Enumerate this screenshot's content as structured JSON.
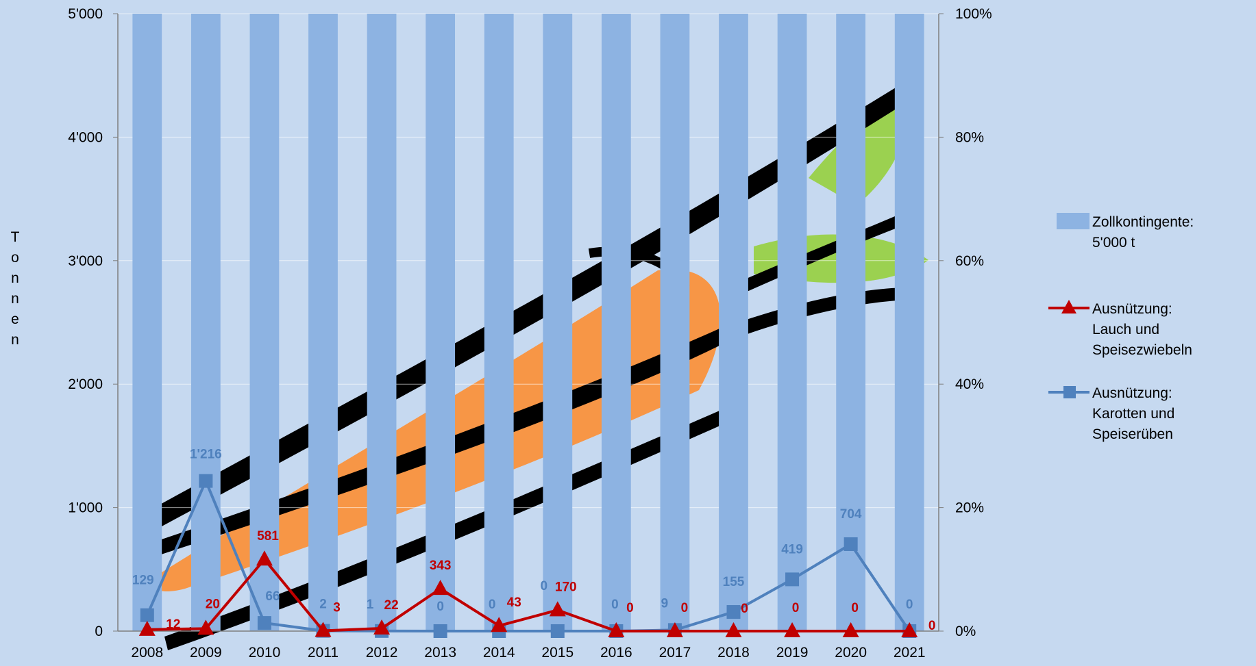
{
  "chart_data": {
    "type": "bar",
    "categories": [
      "2008",
      "2009",
      "2010",
      "2011",
      "2012",
      "2013",
      "2014",
      "2015",
      "2016",
      "2017",
      "2018",
      "2019",
      "2020",
      "2021"
    ],
    "ylabel": "Tonnen",
    "ylim": [
      0,
      5000
    ],
    "y_ticks": [
      "0",
      "1'000",
      "2'000",
      "3'000",
      "4'000",
      "5'000"
    ],
    "y2lim": [
      0,
      100
    ],
    "y2_ticks": [
      "0%",
      "20%",
      "40%",
      "60%",
      "80%",
      "100%"
    ],
    "legend_position": "right",
    "series": [
      {
        "name": "Zollkontingente: 5'000 t",
        "type": "bar",
        "axis": "left",
        "color": "#8db3e2",
        "values": [
          5000,
          5000,
          5000,
          5000,
          5000,
          5000,
          5000,
          5000,
          5000,
          5000,
          5000,
          5000,
          5000,
          5000
        ]
      },
      {
        "name": "Ausnützung: Lauch und Speisezwiebeln",
        "type": "line",
        "marker": "triangle",
        "color": "#c00000",
        "values": [
          12,
          20,
          581,
          3,
          22,
          343,
          43,
          170,
          0,
          0,
          0,
          0,
          0,
          0
        ],
        "labels": [
          "12",
          "20",
          "581",
          "3",
          "22",
          "343",
          "43",
          "170",
          "0",
          "0",
          "0",
          "0",
          "0",
          "0"
        ]
      },
      {
        "name": "Ausnützung: Karotten und Speiserüben",
        "type": "line",
        "marker": "square",
        "color": "#4f81bd",
        "values": [
          129,
          1216,
          66,
          2,
          1,
          0,
          0,
          0,
          0,
          9,
          155,
          419,
          704,
          0
        ],
        "labels": [
          "129",
          "1'216",
          "66",
          "2",
          "1",
          "0",
          "0",
          "0",
          "0",
          "9",
          "155",
          "419",
          "704",
          "0"
        ]
      }
    ]
  },
  "legend": [
    {
      "lines": [
        "Zollkontingente:",
        "5'000 t"
      ]
    },
    {
      "lines": [
        "Ausnützung:",
        "Lauch und",
        "Speisezwiebeln"
      ]
    },
    {
      "lines": [
        "Ausnützung:",
        "Karotten und",
        "Speiserüben"
      ]
    }
  ]
}
